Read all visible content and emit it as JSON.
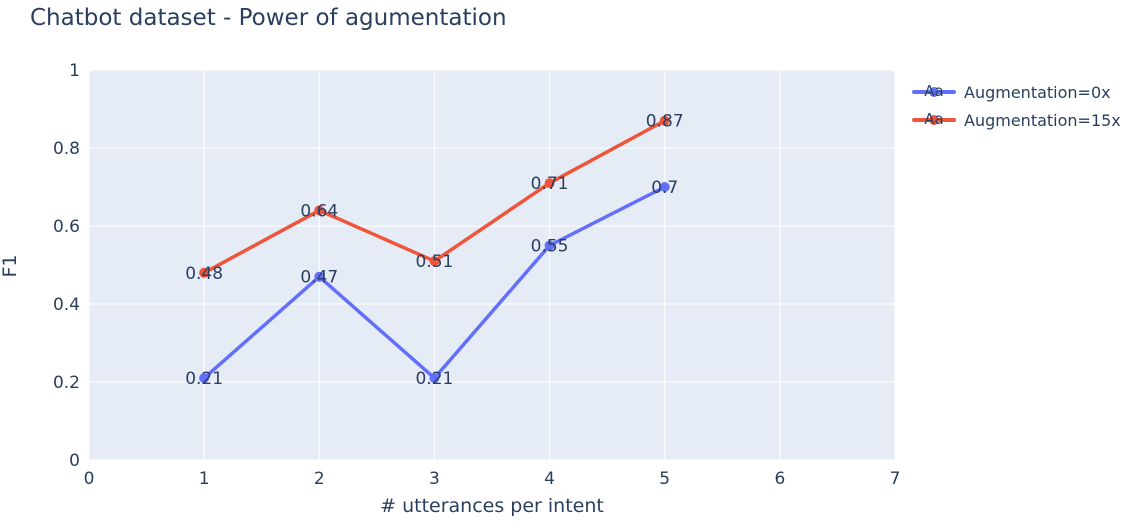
{
  "chart_data": {
    "type": "line",
    "title": "Chatbot dataset - Power of agumentation",
    "xlabel": "# utterances per intent",
    "ylabel": "F1",
    "xlim": [
      0,
      7
    ],
    "ylim": [
      0,
      1
    ],
    "xticks": [
      0,
      1,
      2,
      3,
      4,
      5,
      6,
      7
    ],
    "yticks": [
      0,
      0.2,
      0.4,
      0.6,
      0.8,
      1
    ],
    "x": [
      1,
      2,
      3,
      4,
      5
    ],
    "series": [
      {
        "name": "Augmentation=0x",
        "color": "#636efa",
        "values": [
          0.21,
          0.47,
          0.21,
          0.55,
          0.7
        ]
      },
      {
        "name": "Augmentation=15x",
        "color": "#ef553b",
        "values": [
          0.48,
          0.64,
          0.51,
          0.71,
          0.87
        ]
      }
    ],
    "legend_marker_text": "Aa",
    "grid": true,
    "legend_position": "right-top-outside",
    "plot_bg": "#e5ecf6",
    "grid_color": "#ffffff",
    "text_color": "#2a3f5f"
  }
}
